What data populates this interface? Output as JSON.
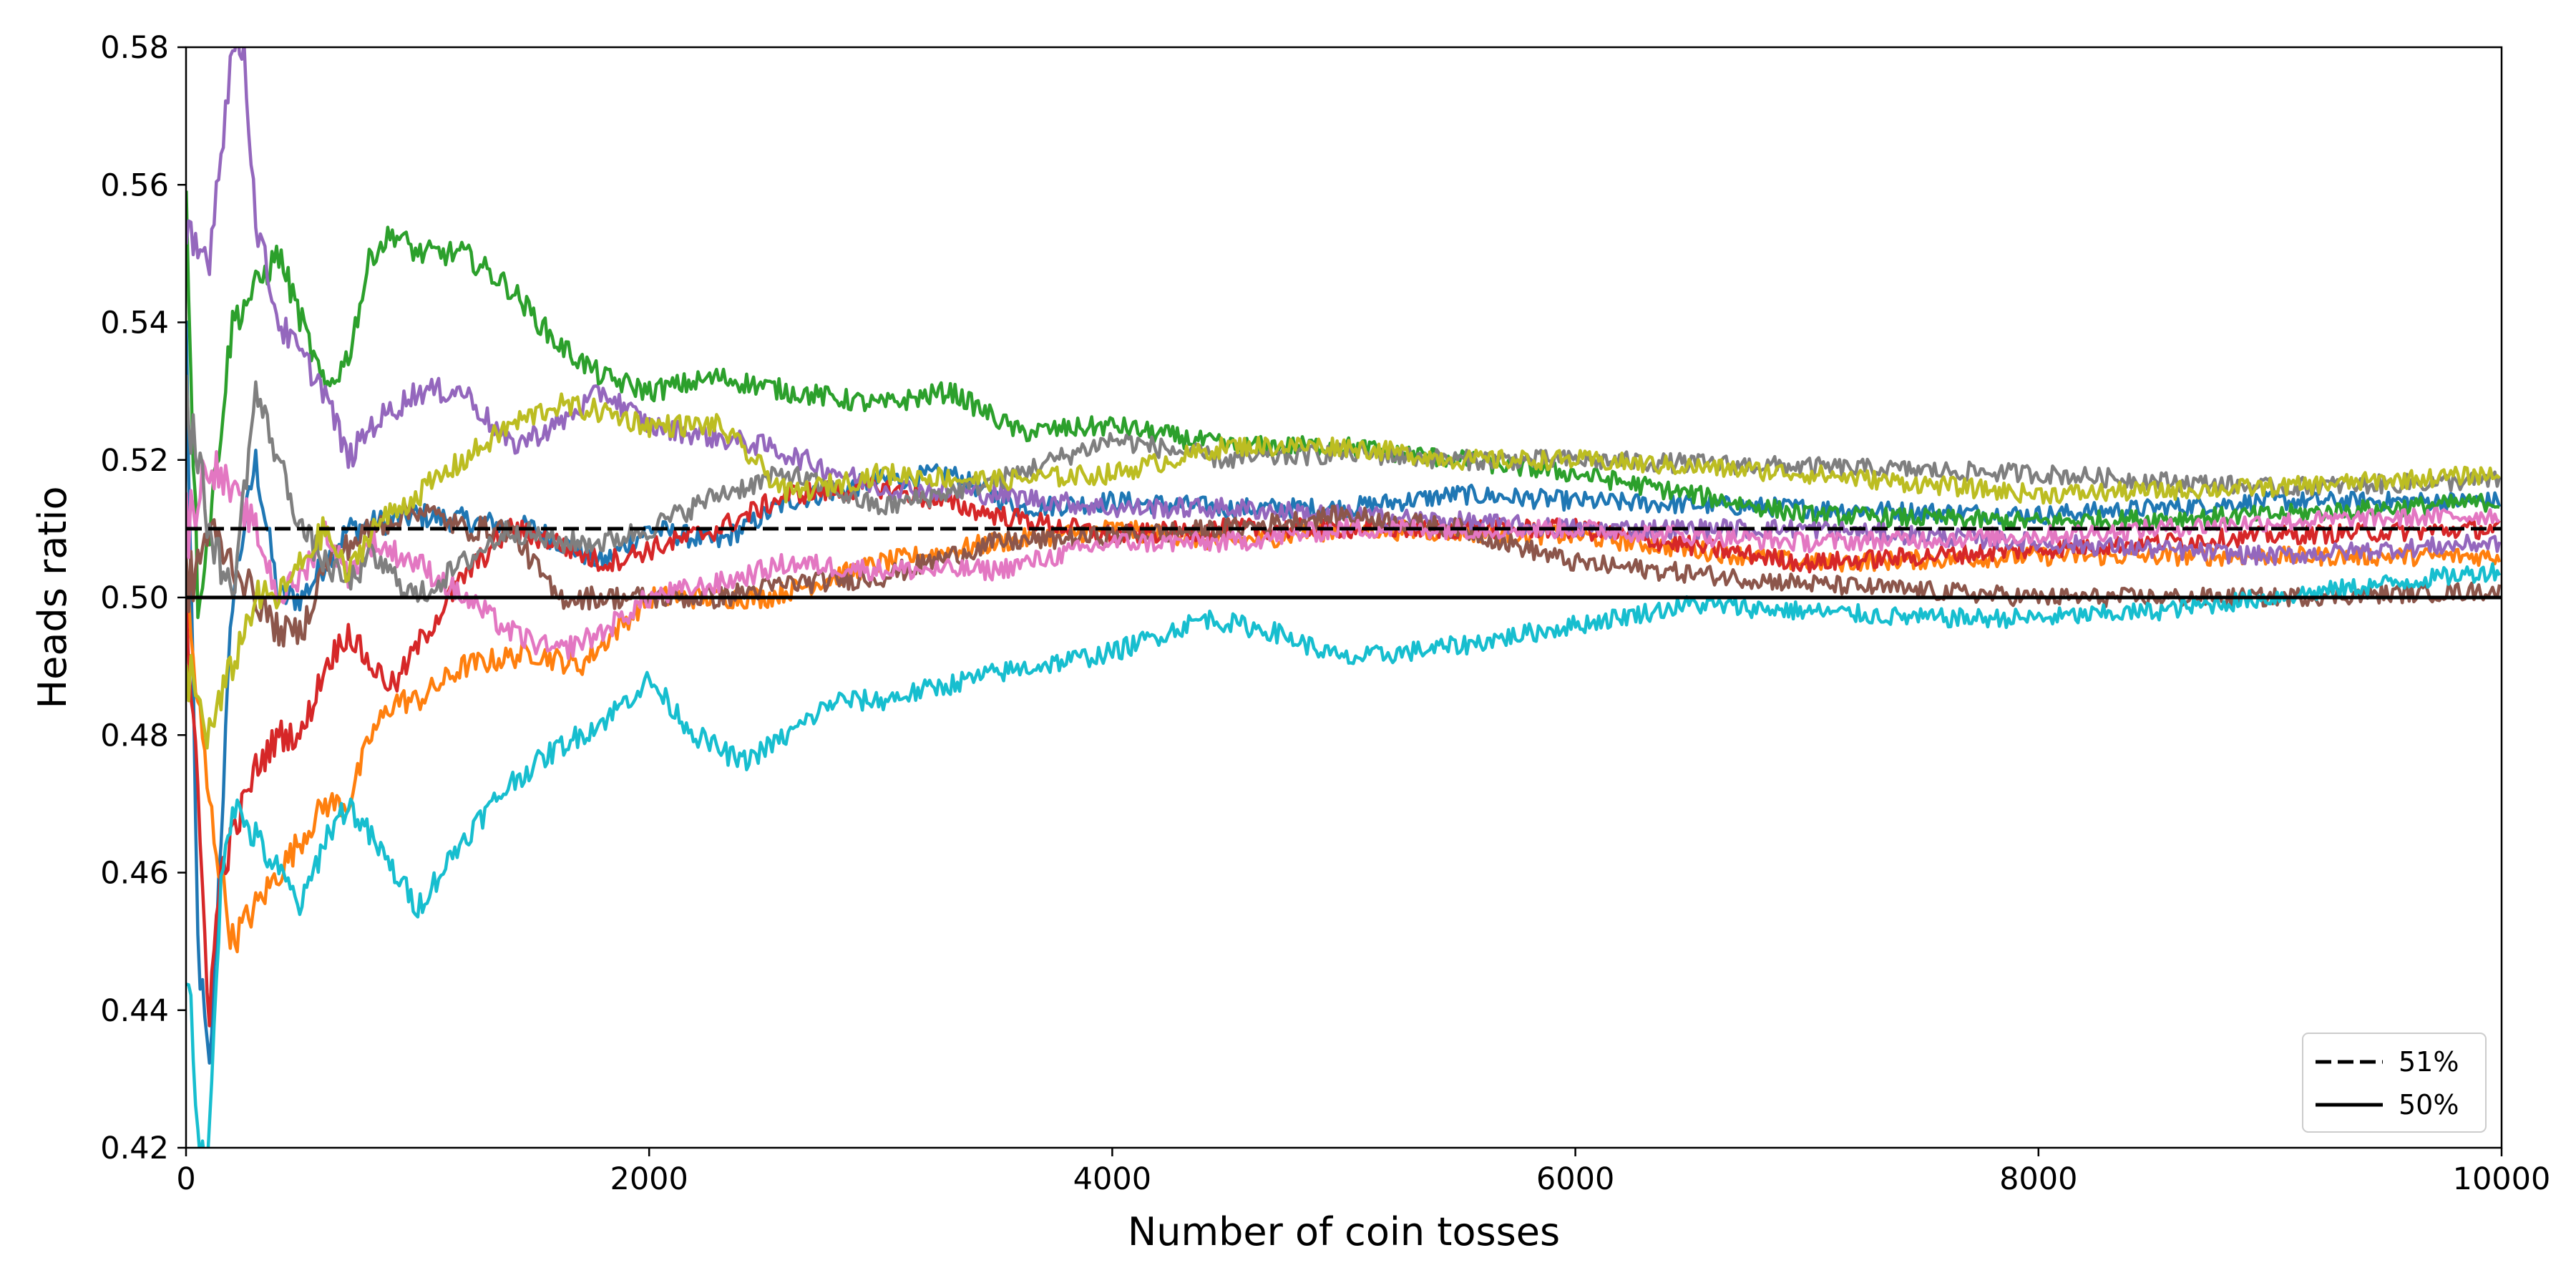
{
  "chart_data": {
    "type": "line",
    "title": "",
    "xlabel": "Number of coin tosses",
    "ylabel": "Heads ratio",
    "xlim": [
      0,
      10000
    ],
    "ylim": [
      0.42,
      0.58
    ],
    "x_ticks": [
      0,
      2000,
      4000,
      6000,
      8000,
      10000
    ],
    "x_tick_labels": [
      "0",
      "2000",
      "4000",
      "6000",
      "8000",
      "10000"
    ],
    "y_ticks": [
      0.42,
      0.44,
      0.46,
      0.48,
      0.5,
      0.52,
      0.54,
      0.56,
      0.58
    ],
    "y_tick_labels": [
      "0.42",
      "0.44",
      "0.46",
      "0.48",
      "0.50",
      "0.52",
      "0.54",
      "0.56",
      "0.58"
    ],
    "grid": false,
    "legend_position": "bottom-right",
    "reference_lines": [
      {
        "label": "51%",
        "y": 0.51,
        "style": "dashed",
        "color": "#000000"
      },
      {
        "label": "50%",
        "y": 0.5,
        "style": "solid",
        "color": "#000000"
      }
    ],
    "series": [
      {
        "color": "#1f77b4",
        "x": [
          0,
          50,
          100,
          200,
          300,
          400,
          500,
          700,
          1000,
          1500,
          1800,
          2000,
          2300,
          2600,
          3000,
          3300,
          3600,
          4000,
          4500,
          5000,
          5500,
          6000,
          7000,
          8000,
          9000,
          10000
        ],
        "y": [
          0.54,
          0.45,
          0.43,
          0.5,
          0.52,
          0.5,
          0.5,
          0.51,
          0.512,
          0.51,
          0.505,
          0.51,
          0.508,
          0.514,
          0.517,
          0.518,
          0.513,
          0.514,
          0.513,
          0.513,
          0.515,
          0.514,
          0.513,
          0.512,
          0.514,
          0.514
        ]
      },
      {
        "color": "#ff7f0e",
        "x": [
          0,
          100,
          200,
          300,
          400,
          500,
          600,
          700,
          800,
          900,
          1000,
          1200,
          1500,
          1700,
          2000,
          2500,
          3000,
          3500,
          4000,
          4500,
          5000,
          6000,
          7000,
          8000,
          9000,
          10000
        ],
        "y": [
          0.5,
          0.47,
          0.45,
          0.455,
          0.46,
          0.465,
          0.47,
          0.47,
          0.48,
          0.485,
          0.485,
          0.49,
          0.492,
          0.49,
          0.5,
          0.5,
          0.505,
          0.508,
          0.51,
          0.508,
          0.51,
          0.509,
          0.505,
          0.506,
          0.506,
          0.506
        ]
      },
      {
        "color": "#2ca02c",
        "x": [
          0,
          50,
          100,
          200,
          300,
          400,
          500,
          600,
          700,
          800,
          900,
          1000,
          1200,
          1400,
          1600,
          1800,
          2000,
          2300,
          2600,
          3000,
          3300,
          3600,
          4000,
          4500,
          5000,
          5500,
          6000,
          7000,
          8000,
          9000,
          10000
        ],
        "y": [
          0.56,
          0.5,
          0.51,
          0.54,
          0.545,
          0.55,
          0.54,
          0.53,
          0.535,
          0.55,
          0.553,
          0.55,
          0.55,
          0.545,
          0.537,
          0.532,
          0.53,
          0.532,
          0.53,
          0.528,
          0.53,
          0.524,
          0.525,
          0.522,
          0.522,
          0.52,
          0.518,
          0.512,
          0.511,
          0.512,
          0.514
        ]
      },
      {
        "color": "#d62728",
        "x": [
          0,
          100,
          150,
          200,
          300,
          400,
          500,
          600,
          700,
          800,
          900,
          1000,
          1200,
          1400,
          1600,
          1800,
          2000,
          2300,
          2600,
          3000,
          3500,
          4000,
          4500,
          5000,
          5500,
          6000,
          7000,
          8000,
          9000,
          10000
        ],
        "y": [
          0.5,
          0.44,
          0.46,
          0.465,
          0.475,
          0.48,
          0.48,
          0.49,
          0.495,
          0.49,
          0.487,
          0.493,
          0.503,
          0.51,
          0.508,
          0.505,
          0.507,
          0.51,
          0.515,
          0.516,
          0.512,
          0.509,
          0.51,
          0.51,
          0.51,
          0.51,
          0.505,
          0.507,
          0.509,
          0.51
        ]
      },
      {
        "color": "#9467bd",
        "x": [
          0,
          100,
          200,
          250,
          300,
          400,
          500,
          600,
          700,
          800,
          1000,
          1200,
          1400,
          1600,
          1800,
          2000,
          2500,
          3000,
          3500,
          4000,
          4500,
          5000,
          6000,
          7000,
          8000,
          9000,
          10000
        ],
        "y": [
          0.55,
          0.55,
          0.58,
          0.58,
          0.555,
          0.54,
          0.535,
          0.53,
          0.52,
          0.525,
          0.53,
          0.53,
          0.522,
          0.525,
          0.53,
          0.525,
          0.522,
          0.516,
          0.515,
          0.513,
          0.513,
          0.512,
          0.51,
          0.51,
          0.508,
          0.506,
          0.508
        ]
      },
      {
        "color": "#8c564b",
        "x": [
          0,
          100,
          200,
          300,
          400,
          500,
          600,
          800,
          1000,
          1200,
          1400,
          1600,
          1800,
          2000,
          2300,
          2600,
          3000,
          3500,
          4000,
          4500,
          5000,
          5500,
          6000,
          7000,
          8000,
          9000,
          10000
        ],
        "y": [
          0.5,
          0.51,
          0.505,
          0.5,
          0.495,
          0.495,
          0.505,
          0.51,
          0.513,
          0.51,
          0.51,
          0.5,
          0.5,
          0.5,
          0.5,
          0.502,
          0.503,
          0.508,
          0.509,
          0.51,
          0.512,
          0.51,
          0.505,
          0.502,
          0.5,
          0.5,
          0.501
        ]
      },
      {
        "color": "#e377c2",
        "x": [
          0,
          100,
          200,
          300,
          400,
          500,
          600,
          700,
          800,
          1000,
          1200,
          1400,
          1600,
          1800,
          2000,
          2300,
          2600,
          3000,
          3500,
          4000,
          4500,
          5000,
          5500,
          6000,
          7000,
          8000,
          9000,
          10000
        ],
        "y": [
          0.51,
          0.52,
          0.515,
          0.51,
          0.5,
          0.503,
          0.51,
          0.503,
          0.508,
          0.505,
          0.5,
          0.495,
          0.492,
          0.495,
          0.5,
          0.502,
          0.505,
          0.504,
          0.504,
          0.508,
          0.508,
          0.51,
          0.51,
          0.51,
          0.508,
          0.509,
          0.511,
          0.512
        ]
      },
      {
        "color": "#7f7f7f",
        "x": [
          0,
          100,
          200,
          300,
          400,
          500,
          600,
          700,
          800,
          1000,
          1200,
          1400,
          1600,
          1800,
          2000,
          2300,
          2600,
          3000,
          3500,
          4000,
          4500,
          5000,
          5500,
          6000,
          7000,
          8000,
          9000,
          10000
        ],
        "y": [
          0.53,
          0.51,
          0.5,
          0.53,
          0.52,
          0.51,
          0.505,
          0.502,
          0.506,
          0.5,
          0.505,
          0.51,
          0.508,
          0.508,
          0.51,
          0.515,
          0.518,
          0.513,
          0.517,
          0.523,
          0.52,
          0.521,
          0.52,
          0.52,
          0.519,
          0.518,
          0.516,
          0.517
        ]
      },
      {
        "color": "#bcbd22",
        "x": [
          0,
          100,
          200,
          300,
          400,
          500,
          600,
          700,
          800,
          1000,
          1200,
          1400,
          1600,
          1800,
          2000,
          2300,
          2600,
          3000,
          3500,
          4000,
          4500,
          5000,
          5500,
          6000,
          7000,
          8000,
          9000,
          10000
        ],
        "y": [
          0.49,
          0.48,
          0.49,
          0.5,
          0.5,
          0.505,
          0.51,
          0.503,
          0.51,
          0.515,
          0.52,
          0.525,
          0.528,
          0.527,
          0.525,
          0.525,
          0.515,
          0.518,
          0.517,
          0.518,
          0.522,
          0.522,
          0.52,
          0.52,
          0.518,
          0.515,
          0.516,
          0.518
        ]
      },
      {
        "color": "#17becf",
        "x": [
          0,
          50,
          100,
          150,
          200,
          300,
          400,
          500,
          600,
          700,
          800,
          900,
          1000,
          1200,
          1400,
          1600,
          1800,
          2000,
          2200,
          2400,
          2600,
          2800,
          3000,
          3500,
          4000,
          4400,
          4700,
          5000,
          5500,
          6000,
          6500,
          7000,
          7500,
          8000,
          8500,
          9000,
          9500,
          10000
        ],
        "y": [
          0.45,
          0.42,
          0.42,
          0.46,
          0.47,
          0.465,
          0.46,
          0.455,
          0.465,
          0.47,
          0.465,
          0.46,
          0.455,
          0.465,
          0.473,
          0.478,
          0.482,
          0.488,
          0.48,
          0.476,
          0.48,
          0.485,
          0.485,
          0.489,
          0.492,
          0.497,
          0.495,
          0.491,
          0.493,
          0.496,
          0.499,
          0.498,
          0.497,
          0.497,
          0.498,
          0.5,
          0.502,
          0.504
        ]
      }
    ]
  }
}
